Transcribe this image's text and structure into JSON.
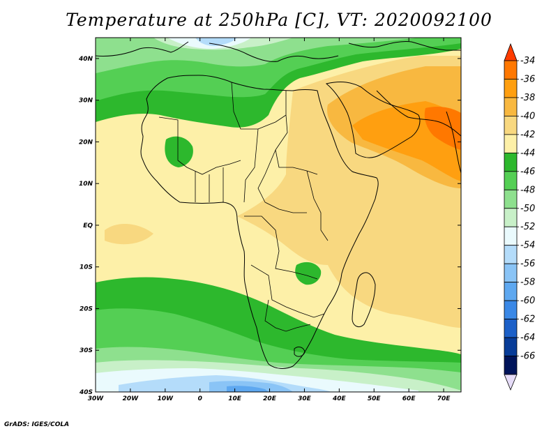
{
  "title": "Temperature at 250hPa [C], VT: 2020092100",
  "credit": "GrADS: IGES/COLA",
  "map": {
    "lon_range": [
      -30,
      75
    ],
    "lat_range": [
      -40,
      45
    ],
    "lat_ticks": [
      "40N",
      "30N",
      "20N",
      "10N",
      "EQ",
      "10S",
      "20S",
      "30S",
      "40S"
    ],
    "lon_ticks": [
      "30W",
      "20W",
      "10W",
      "0",
      "10E",
      "20E",
      "30E",
      "40E",
      "50E",
      "60E",
      "70E"
    ]
  },
  "colorbar": {
    "labels": [
      "-34",
      "-36",
      "-38",
      "-40",
      "-42",
      "-44",
      "-46",
      "-48",
      "-50",
      "-52",
      "-54",
      "-56",
      "-58",
      "-60",
      "-62",
      "-64",
      "-66"
    ],
    "colors": [
      "#ff3c00",
      "#ff7800",
      "#ff9f10",
      "#f8b840",
      "#f8d880",
      "#fdf0a8",
      "#2db82d",
      "#54cf54",
      "#8ee08e",
      "#c8f0c8",
      "#eafafd",
      "#b4dcfa",
      "#8ac4f6",
      "#5ea8f0",
      "#3a88e6",
      "#1c60c8",
      "#083c98",
      "#00145a",
      "#e6dcf8"
    ]
  }
}
